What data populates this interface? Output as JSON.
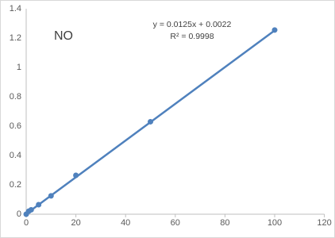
{
  "chart_data": {
    "type": "scatter",
    "x": [
      0,
      1,
      2,
      5,
      10,
      20,
      50,
      100
    ],
    "series": [
      {
        "color": "#4f81bd",
        "values": [
          0.0,
          0.02,
          0.03,
          0.065,
          0.125,
          0.265,
          0.63,
          1.255
        ]
      }
    ],
    "trendline": {
      "color": "#4f81bd",
      "x": [
        0,
        100
      ],
      "values": [
        0.0022,
        1.2522
      ]
    },
    "annotations": [
      "NO",
      "y = 0.0125x + 0.0022",
      "R² = 0.9998"
    ],
    "xlim": [
      0,
      120
    ],
    "xticks": [
      0,
      20,
      40,
      60,
      80,
      100,
      120
    ],
    "ylim": [
      0,
      1.4
    ],
    "yticks": [
      0,
      0.2,
      0.4,
      0.6,
      0.8,
      1,
      1.2,
      1.4
    ],
    "grid": false
  }
}
